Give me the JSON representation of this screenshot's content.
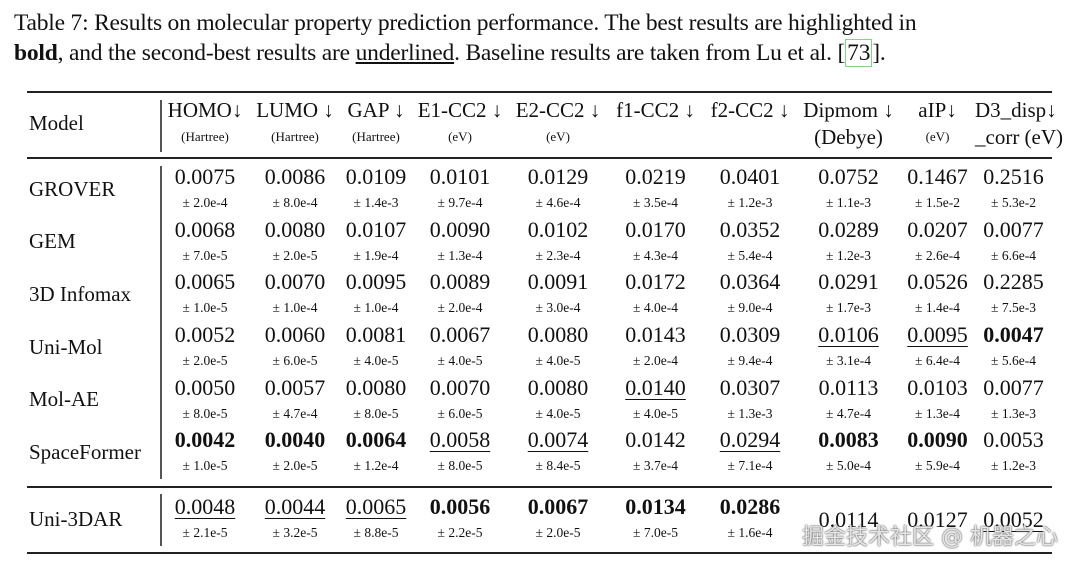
{
  "caption": {
    "prefix": "Table 7: Results on molecular property prediction performance. The best results are highlighted in",
    "bold_word": "bold",
    "mid": ", and the second-best results are",
    "underlined_word": "underlined",
    "suffix": ". Baseline results are taken from Lu et al.",
    "ref_open": "[",
    "ref": "73",
    "ref_close": "]."
  },
  "table": {
    "model_header": "Model",
    "columns": [
      {
        "name": "HOMO↓",
        "unit": "(Hartree)"
      },
      {
        "name": "LUMO ↓",
        "unit": "(Hartree)"
      },
      {
        "name": "GAP ↓",
        "unit": "(Hartree)"
      },
      {
        "name": "E1-CC2 ↓",
        "unit": "(eV)"
      },
      {
        "name": "E2-CC2 ↓",
        "unit": "(eV)"
      },
      {
        "name": "f1-CC2 ↓",
        "unit": ""
      },
      {
        "name": "f2-CC2 ↓",
        "unit": ""
      },
      {
        "name": "Dipmom ↓",
        "unit": "(Debye)"
      },
      {
        "name": "aIP↓",
        "unit": "(eV)"
      },
      {
        "name": "D3_disp↓",
        "unit": "_corr (eV)"
      }
    ],
    "baselines": [
      {
        "model": "GROVER",
        "cells": [
          {
            "v": "0.0075",
            "s": "± 2.0e-4"
          },
          {
            "v": "0.0086",
            "s": "± 8.0e-4"
          },
          {
            "v": "0.0109",
            "s": "± 1.4e-3"
          },
          {
            "v": "0.0101",
            "s": "± 9.7e-4"
          },
          {
            "v": "0.0129",
            "s": "± 4.6e-4"
          },
          {
            "v": "0.0219",
            "s": "± 3.5e-4"
          },
          {
            "v": "0.0401",
            "s": "± 1.2e-3"
          },
          {
            "v": "0.0752",
            "s": "± 1.1e-3"
          },
          {
            "v": "0.1467",
            "s": "± 1.5e-2"
          },
          {
            "v": "0.2516",
            "s": "± 5.3e-2"
          }
        ]
      },
      {
        "model": "GEM",
        "cells": [
          {
            "v": "0.0068",
            "s": "± 7.0e-5"
          },
          {
            "v": "0.0080",
            "s": "± 2.0e-5"
          },
          {
            "v": "0.0107",
            "s": "± 1.9e-4"
          },
          {
            "v": "0.0090",
            "s": "± 1.3e-4"
          },
          {
            "v": "0.0102",
            "s": "± 2.3e-4"
          },
          {
            "v": "0.0170",
            "s": "± 4.3e-4"
          },
          {
            "v": "0.0352",
            "s": "± 5.4e-4"
          },
          {
            "v": "0.0289",
            "s": "± 1.2e-3"
          },
          {
            "v": "0.0207",
            "s": "± 2.6e-4"
          },
          {
            "v": "0.0077",
            "s": "± 6.6e-4"
          }
        ]
      },
      {
        "model": "3D Infomax",
        "cells": [
          {
            "v": "0.0065",
            "s": "± 1.0e-5"
          },
          {
            "v": "0.0070",
            "s": "± 1.0e-4"
          },
          {
            "v": "0.0095",
            "s": "± 1.0e-4"
          },
          {
            "v": "0.0089",
            "s": "± 2.0e-4"
          },
          {
            "v": "0.0091",
            "s": "± 3.0e-4"
          },
          {
            "v": "0.0172",
            "s": "± 4.0e-4"
          },
          {
            "v": "0.0364",
            "s": "± 9.0e-4"
          },
          {
            "v": "0.0291",
            "s": "± 1.7e-3"
          },
          {
            "v": "0.0526",
            "s": "± 1.4e-4"
          },
          {
            "v": "0.2285",
            "s": "± 7.5e-3"
          }
        ]
      },
      {
        "model": "Uni-Mol",
        "cells": [
          {
            "v": "0.0052",
            "s": "± 2.0e-5"
          },
          {
            "v": "0.0060",
            "s": "± 6.0e-5"
          },
          {
            "v": "0.0081",
            "s": "± 4.0e-5"
          },
          {
            "v": "0.0067",
            "s": "± 4.0e-5"
          },
          {
            "v": "0.0080",
            "s": "± 4.0e-5"
          },
          {
            "v": "0.0143",
            "s": "± 2.0e-4"
          },
          {
            "v": "0.0309",
            "s": "± 9.4e-4"
          },
          {
            "v": "0.0106",
            "s": "± 3.1e-4",
            "r": "second"
          },
          {
            "v": "0.0095",
            "s": "± 6.4e-4",
            "r": "second"
          },
          {
            "v": "0.0047",
            "s": "± 5.6e-4",
            "r": "best"
          }
        ]
      },
      {
        "model": "Mol-AE",
        "cells": [
          {
            "v": "0.0050",
            "s": "± 8.0e-5"
          },
          {
            "v": "0.0057",
            "s": "± 4.7e-4"
          },
          {
            "v": "0.0080",
            "s": "± 8.0e-5"
          },
          {
            "v": "0.0070",
            "s": "± 6.0e-5"
          },
          {
            "v": "0.0080",
            "s": "± 4.0e-5"
          },
          {
            "v": "0.0140",
            "s": "± 4.0e-5",
            "r": "second"
          },
          {
            "v": "0.0307",
            "s": "± 1.3e-3"
          },
          {
            "v": "0.0113",
            "s": "± 4.7e-4"
          },
          {
            "v": "0.0103",
            "s": "± 1.3e-4"
          },
          {
            "v": "0.0077",
            "s": "± 1.3e-3"
          }
        ]
      },
      {
        "model": "SpaceFormer",
        "cells": [
          {
            "v": "0.0042",
            "s": "± 1.0e-5",
            "r": "best"
          },
          {
            "v": "0.0040",
            "s": "± 2.0e-5",
            "r": "best"
          },
          {
            "v": "0.0064",
            "s": "± 1.2e-4",
            "r": "best"
          },
          {
            "v": "0.0058",
            "s": "± 8.0e-5",
            "r": "second"
          },
          {
            "v": "0.0074",
            "s": "± 8.4e-5",
            "r": "second"
          },
          {
            "v": "0.0142",
            "s": "± 3.7e-4"
          },
          {
            "v": "0.0294",
            "s": "± 7.1e-4",
            "r": "second"
          },
          {
            "v": "0.0083",
            "s": "± 5.0e-4",
            "r": "best"
          },
          {
            "v": "0.0090",
            "s": "± 5.9e-4",
            "r": "best"
          },
          {
            "v": "0.0053",
            "s": "± 1.2e-3"
          }
        ]
      }
    ],
    "ours": [
      {
        "model": "Uni-3DAR",
        "cells": [
          {
            "v": "0.0048",
            "s": "± 2.1e-5",
            "r": "second"
          },
          {
            "v": "0.0044",
            "s": "± 3.2e-5",
            "r": "second"
          },
          {
            "v": "0.0065",
            "s": "± 8.8e-5",
            "r": "second"
          },
          {
            "v": "0.0056",
            "s": "± 2.2e-5",
            "r": "best"
          },
          {
            "v": "0.0067",
            "s": "± 2.0e-5",
            "r": "best"
          },
          {
            "v": "0.0134",
            "s": "± 7.0e-5",
            "r": "best"
          },
          {
            "v": "0.0286",
            "s": "± 1.6e-4",
            "r": "best"
          },
          {
            "v": "0.0114",
            "s": ""
          },
          {
            "v": "0.0127",
            "s": ""
          },
          {
            "v": "0.0052",
            "s": "",
            "r": "second"
          }
        ]
      }
    ]
  },
  "watermark": "掘金技术社区 @ 机器之心"
}
